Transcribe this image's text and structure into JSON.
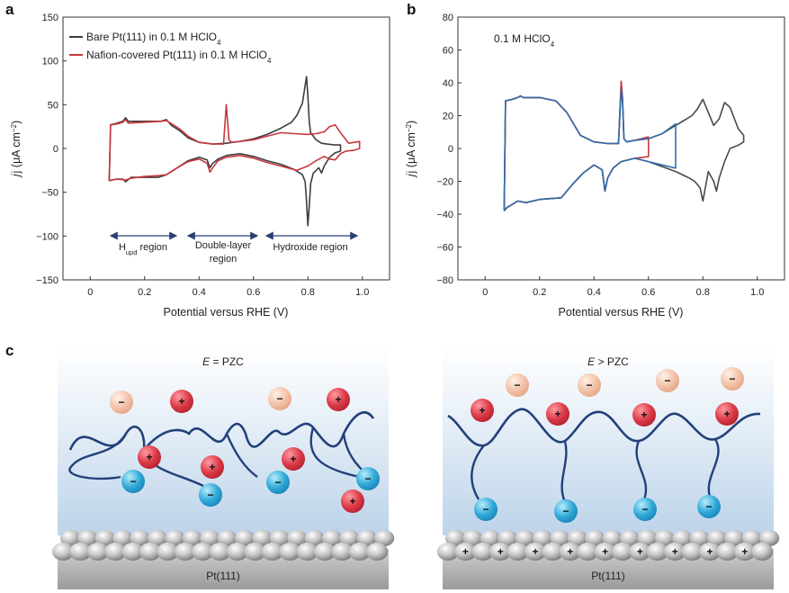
{
  "figure": {
    "panel_letters": [
      "a",
      "b",
      "c"
    ],
    "legend": {
      "bare": "Bare Pt(111) in 0.1 M HClO",
      "nafion": "Nafion-covered Pt(111) in 0.1 M HClO",
      "sub": "4"
    },
    "regions": {
      "hupd_main": "H",
      "hupd_sub": "upd",
      "hupd_rest": " region",
      "dl_line1": "Double-layer",
      "dl_line2": "region",
      "hydroxide": "Hydroxide region"
    },
    "b_annotation": {
      "main": "0.1 M HClO",
      "sub": "4"
    },
    "schematic": {
      "left_title_italic": "E",
      "left_title_rest": " = PZC",
      "right_title_italic": "E",
      "right_title_rest": " > PZC",
      "left_surface": "Pt(111)",
      "right_surface": "Pt(111)",
      "plus": "+",
      "minus": "−"
    }
  },
  "chart_data": [
    {
      "type": "line",
      "panel": "a",
      "xlabel": "Potential versus RHE (V)",
      "ylabel_main": "j (μA cm",
      "ylabel_sup": "−2",
      "ylabel_close": ")",
      "xlim": [
        -0.1,
        1.1
      ],
      "ylim": [
        -150,
        150
      ],
      "xticks": [
        0,
        0.2,
        0.4,
        0.6,
        0.8,
        1.0
      ],
      "xtick_labels": [
        "0",
        "0.2",
        "0.4",
        "0.6",
        "0.8",
        "1.0"
      ],
      "yticks": [
        -150,
        -100,
        -50,
        0,
        50,
        100,
        150
      ],
      "ytick_labels": [
        "−150",
        "−100",
        "−50",
        "0",
        "50",
        "100",
        "150"
      ],
      "series": [
        {
          "name": "Bare Pt(111) in 0.1 M HClO4",
          "color": "#3d3d3d",
          "x": [
            0.07,
            0.075,
            0.1,
            0.12,
            0.13,
            0.14,
            0.2,
            0.26,
            0.28,
            0.3,
            0.33,
            0.36,
            0.4,
            0.45,
            0.5,
            0.55,
            0.6,
            0.65,
            0.7,
            0.74,
            0.76,
            0.78,
            0.79,
            0.795,
            0.8,
            0.805,
            0.81,
            0.83,
            0.85,
            0.87,
            0.9,
            0.92,
            0.92,
            0.9,
            0.88,
            0.86,
            0.85,
            0.84,
            0.82,
            0.81,
            0.805,
            0.8,
            0.795,
            0.79,
            0.78,
            0.75,
            0.7,
            0.65,
            0.6,
            0.55,
            0.5,
            0.47,
            0.45,
            0.44,
            0.43,
            0.4,
            0.36,
            0.32,
            0.28,
            0.25,
            0.2,
            0.15,
            0.13,
            0.12,
            0.1,
            0.08,
            0.07
          ],
          "y": [
            -37,
            27,
            29,
            31,
            35,
            31,
            31,
            31,
            33,
            26,
            20,
            12,
            7,
            5,
            6,
            8,
            11,
            16,
            23,
            30,
            38,
            52,
            72,
            82,
            60,
            30,
            18,
            10,
            6,
            5,
            4,
            4,
            -3,
            -5,
            -10,
            -20,
            -28,
            -22,
            -28,
            -40,
            -65,
            -88,
            -60,
            -38,
            -30,
            -24,
            -18,
            -14,
            -9,
            -6,
            -8,
            -12,
            -17,
            -22,
            -13,
            -10,
            -14,
            -22,
            -30,
            -33,
            -33,
            -33,
            -38,
            -35,
            -35,
            -36,
            -37
          ]
        },
        {
          "name": "Nafion-covered Pt(111) in 0.1 M HClO4",
          "color": "#c8373f",
          "x": [
            0.07,
            0.075,
            0.1,
            0.12,
            0.13,
            0.14,
            0.2,
            0.26,
            0.28,
            0.3,
            0.33,
            0.36,
            0.4,
            0.45,
            0.49,
            0.5,
            0.505,
            0.51,
            0.52,
            0.55,
            0.6,
            0.65,
            0.7,
            0.75,
            0.8,
            0.83,
            0.86,
            0.88,
            0.9,
            0.92,
            0.95,
            0.99,
            0.99,
            0.97,
            0.94,
            0.92,
            0.9,
            0.88,
            0.86,
            0.83,
            0.8,
            0.76,
            0.7,
            0.65,
            0.6,
            0.55,
            0.5,
            0.47,
            0.45,
            0.44,
            0.43,
            0.4,
            0.36,
            0.32,
            0.28,
            0.25,
            0.2,
            0.15,
            0.13,
            0.1,
            0.08,
            0.07
          ],
          "y": [
            -37,
            27,
            28,
            30,
            33,
            29,
            30,
            31,
            32,
            28,
            22,
            14,
            7,
            5,
            5,
            50,
            30,
            10,
            7,
            8,
            10,
            14,
            18,
            17,
            16,
            17,
            19,
            25,
            27,
            18,
            6,
            8,
            0,
            -2,
            -3,
            -6,
            -13,
            -12,
            -9,
            -14,
            -20,
            -25,
            -20,
            -16,
            -11,
            -8,
            -10,
            -14,
            -22,
            -27,
            -17,
            -12,
            -15,
            -22,
            -30,
            -31,
            -32,
            -34,
            -36,
            -35,
            -36,
            -37
          ]
        }
      ]
    },
    {
      "type": "line",
      "panel": "b",
      "xlabel": "Potential versus RHE (V)",
      "ylabel_main": "j (μA cm",
      "ylabel_sup": "−2",
      "ylabel_close": ")",
      "xlim": [
        -0.1,
        1.1
      ],
      "ylim": [
        -80,
        80
      ],
      "xticks": [
        0,
        0.2,
        0.4,
        0.6,
        0.8,
        1.0
      ],
      "xtick_labels": [
        "0",
        "0.2",
        "0.4",
        "0.6",
        "0.8",
        "1.0"
      ],
      "yticks": [
        -80,
        -60,
        -40,
        -20,
        0,
        20,
        40,
        60,
        80
      ],
      "ytick_labels": [
        "−80",
        "−60",
        "−40",
        "−20",
        "0",
        "20",
        "40",
        "60",
        "80"
      ],
      "series": [
        {
          "color": "#4a4a4a",
          "x": [
            0.07,
            0.075,
            0.1,
            0.12,
            0.13,
            0.14,
            0.2,
            0.26,
            0.3,
            0.35,
            0.4,
            0.45,
            0.49,
            0.5,
            0.505,
            0.51,
            0.52,
            0.55,
            0.6,
            0.65,
            0.7,
            0.73,
            0.76,
            0.78,
            0.8,
            0.82,
            0.84,
            0.86,
            0.88,
            0.9,
            0.93,
            0.95,
            0.95,
            0.93,
            0.9,
            0.88,
            0.86,
            0.85,
            0.84,
            0.82,
            0.8,
            0.79,
            0.77,
            0.75,
            0.7,
            0.65,
            0.6,
            0.55,
            0.5,
            0.47,
            0.45,
            0.44,
            0.43,
            0.4,
            0.36,
            0.32,
            0.28,
            0.2,
            0.15,
            0.12,
            0.1,
            0.08,
            0.07
          ],
          "y": [
            -38,
            29,
            30,
            31,
            32,
            31,
            31,
            29,
            22,
            8,
            4,
            3,
            3,
            40,
            30,
            6,
            4,
            5,
            6,
            9,
            14,
            17,
            20,
            24,
            30,
            22,
            14,
            18,
            28,
            25,
            12,
            8,
            4,
            2,
            0,
            -8,
            -18,
            -26,
            -20,
            -14,
            -32,
            -24,
            -20,
            -18,
            -14,
            -11,
            -8,
            -6,
            -8,
            -12,
            -18,
            -26,
            -13,
            -10,
            -15,
            -22,
            -30,
            -31,
            -33,
            -32,
            -34,
            -36,
            -38
          ]
        },
        {
          "color": "#c8373f",
          "x": [
            0.07,
            0.075,
            0.1,
            0.12,
            0.13,
            0.14,
            0.2,
            0.26,
            0.3,
            0.35,
            0.4,
            0.45,
            0.49,
            0.5,
            0.505,
            0.51,
            0.52,
            0.55,
            0.6,
            0.6,
            0.55,
            0.5,
            0.47,
            0.45,
            0.44,
            0.43,
            0.4,
            0.36,
            0.32,
            0.28,
            0.2,
            0.15,
            0.12,
            0.1,
            0.08,
            0.07
          ],
          "y": [
            -38,
            29,
            30,
            31,
            32,
            31,
            31,
            29,
            22,
            8,
            4,
            3,
            3,
            41,
            30,
            6,
            4,
            5,
            7,
            -5,
            -6,
            -8,
            -12,
            -18,
            -26,
            -13,
            -10,
            -15,
            -22,
            -30,
            -31,
            -33,
            -32,
            -34,
            -36,
            -38
          ]
        },
        {
          "color": "#2f6eac",
          "x": [
            0.07,
            0.075,
            0.1,
            0.12,
            0.13,
            0.14,
            0.2,
            0.26,
            0.3,
            0.35,
            0.4,
            0.45,
            0.49,
            0.5,
            0.505,
            0.51,
            0.52,
            0.55,
            0.6,
            0.65,
            0.7,
            0.7,
            0.65,
            0.6,
            0.55,
            0.5,
            0.47,
            0.45,
            0.44,
            0.43,
            0.4,
            0.36,
            0.32,
            0.28,
            0.2,
            0.15,
            0.12,
            0.1,
            0.08,
            0.07
          ],
          "y": [
            -38,
            29,
            30,
            31,
            32,
            31,
            31,
            29,
            22,
            8,
            4,
            3,
            3,
            36,
            28,
            6,
            4,
            5,
            6,
            9,
            15,
            -12,
            -10,
            -8,
            -6,
            -8,
            -12,
            -18,
            -26,
            -13,
            -10,
            -15,
            -22,
            -30,
            -31,
            -33,
            -32,
            -34,
            -36,
            -38
          ]
        }
      ]
    }
  ]
}
